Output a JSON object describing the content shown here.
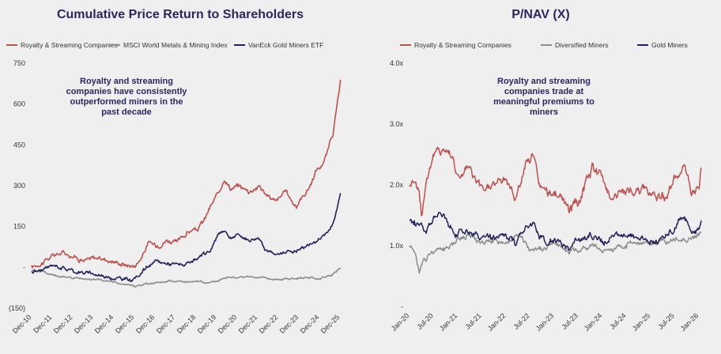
{
  "colors": {
    "royalty": "#c0504d",
    "msci": "#8c8c8c",
    "gold": "#23215c",
    "title": "#2a2760",
    "bg": "#efefef"
  },
  "chart_data": [
    {
      "type": "line",
      "title": "Cumulative Price Return to Shareholders",
      "ylim": [
        -150,
        750
      ],
      "yticks": [
        "(150)",
        "-",
        "150",
        "300",
        "450",
        "600",
        "750"
      ],
      "ytick_values": [
        -150,
        0,
        150,
        300,
        450,
        600,
        750
      ],
      "xlim": [
        2010.92,
        2026.0
      ],
      "xticks": [
        "Dec-10",
        "Dec-11",
        "Dec-12",
        "Dec-13",
        "Dec-14",
        "Dec-15",
        "Dec-16",
        "Dec-17",
        "Dec-18",
        "Dec-19",
        "Dec-20",
        "Dec-21",
        "Dec-22",
        "Dec-23",
        "Dec-24",
        "Dec-25"
      ],
      "xtick_values": [
        2010.92,
        2011.92,
        2012.92,
        2013.92,
        2014.92,
        2015.92,
        2016.92,
        2017.92,
        2018.92,
        2019.92,
        2020.92,
        2021.92,
        2022.92,
        2023.92,
        2024.92,
        2025.92
      ],
      "legend_position": "top",
      "annotation": [
        "Royalty and streaming",
        "companies have consistently",
        "outperformed miners in the",
        "past decade"
      ],
      "series": [
        {
          "name": "Royalty & Streaming Companies",
          "color": "#c0504d",
          "noise": 8,
          "x": [
            2010.92,
            2011.5,
            2012.0,
            2012.5,
            2013.0,
            2013.5,
            2014.0,
            2014.5,
            2015.0,
            2015.5,
            2015.92,
            2016.3,
            2016.6,
            2017.0,
            2017.5,
            2018.0,
            2018.5,
            2019.0,
            2019.3,
            2019.6,
            2020.0,
            2020.3,
            2020.6,
            2021.0,
            2021.5,
            2022.0,
            2022.3,
            2022.8,
            2023.3,
            2023.8,
            2024.0,
            2024.3,
            2024.6,
            2024.8,
            2025.0,
            2025.3,
            2025.6,
            2025.8,
            2025.95
          ],
          "y": [
            0,
            20,
            45,
            55,
            40,
            25,
            35,
            30,
            20,
            10,
            5,
            40,
            90,
            80,
            100,
            90,
            130,
            140,
            170,
            220,
            270,
            330,
            290,
            300,
            280,
            300,
            270,
            240,
            280,
            220,
            250,
            280,
            320,
            360,
            370,
            420,
            500,
            600,
            680
          ]
        },
        {
          "name": "MSCI World Metals & Mining Index",
          "color": "#8c8c8c",
          "noise": 3,
          "x": [
            2010.92,
            2011.5,
            2012.0,
            2013.0,
            2014.0,
            2015.0,
            2015.92,
            2016.5,
            2017.0,
            2018.0,
            2019.0,
            2020.0,
            2020.5,
            2021.0,
            2022.0,
            2023.0,
            2024.0,
            2025.0,
            2025.5,
            2025.95
          ],
          "y": [
            -10,
            -15,
            -30,
            -40,
            -45,
            -55,
            -70,
            -62,
            -55,
            -50,
            -55,
            -50,
            -35,
            -35,
            -38,
            -45,
            -38,
            -40,
            -30,
            0
          ]
        },
        {
          "name": "VanEck Gold Miners ETF",
          "color": "#23215c",
          "noise": 6,
          "x": [
            2010.92,
            2011.5,
            2012.0,
            2013.0,
            2014.0,
            2015.0,
            2015.92,
            2016.5,
            2017.0,
            2018.0,
            2018.5,
            2019.0,
            2019.6,
            2020.0,
            2020.3,
            2020.6,
            2021.0,
            2021.5,
            2022.0,
            2022.3,
            2022.8,
            2023.3,
            2023.8,
            2024.3,
            2024.8,
            2025.0,
            2025.3,
            2025.6,
            2025.8,
            2025.95
          ],
          "y": [
            -15,
            -10,
            10,
            -15,
            -25,
            -40,
            -45,
            0,
            20,
            10,
            10,
            30,
            60,
            120,
            140,
            105,
            120,
            100,
            110,
            70,
            40,
            60,
            60,
            80,
            95,
            110,
            130,
            160,
            220,
            280
          ]
        }
      ]
    },
    {
      "type": "line",
      "title": "P/NAV (X)",
      "ylim": [
        0,
        4.0
      ],
      "yticks": [
        "-",
        "1.0x",
        "2.0x",
        "3.0x",
        "4.0x"
      ],
      "ytick_values": [
        0,
        1,
        2,
        3,
        4
      ],
      "xlim": [
        2020.0,
        2026.1
      ],
      "xticks": [
        "Jan-20",
        "Jul-20",
        "Jan-21",
        "Jul-21",
        "Jan-22",
        "Jul-22",
        "Jan-23",
        "Jul-23",
        "Jan-24",
        "Jul-24",
        "Jan-25",
        "Jul-25",
        "Jan-26"
      ],
      "xtick_values": [
        2020.0,
        2020.5,
        2021.0,
        2021.5,
        2022.0,
        2022.5,
        2023.0,
        2023.5,
        2024.0,
        2024.5,
        2025.0,
        2025.5,
        2026.0
      ],
      "legend_position": "top",
      "annotation": [
        "Royalty and streaming",
        "companies trade at",
        "meaningful premiums to",
        "miners"
      ],
      "series": [
        {
          "name": "Royalty & Streaming Companies",
          "color": "#c0504d",
          "noise": 0.07,
          "x": [
            2020.0,
            2020.1,
            2020.2,
            2020.25,
            2020.35,
            2020.5,
            2020.7,
            2020.9,
            2021.0,
            2021.2,
            2021.5,
            2021.7,
            2022.0,
            2022.2,
            2022.4,
            2022.55,
            2022.7,
            2022.9,
            2023.0,
            2023.3,
            2023.5,
            2023.8,
            2024.0,
            2024.2,
            2024.5,
            2024.8,
            2025.0,
            2025.3,
            2025.5,
            2025.7,
            2025.85,
            2026.0,
            2026.05
          ],
          "y": [
            2.0,
            2.1,
            1.9,
            1.5,
            2.1,
            2.5,
            2.6,
            2.5,
            2.1,
            2.3,
            1.9,
            2.0,
            2.1,
            1.8,
            2.3,
            2.5,
            2.0,
            1.8,
            1.9,
            1.6,
            1.7,
            2.3,
            2.1,
            1.8,
            1.9,
            1.9,
            1.9,
            1.8,
            2.1,
            2.3,
            1.8,
            2.0,
            2.3
          ]
        },
        {
          "name": "Diversified Miners",
          "color": "#8c8c8c",
          "noise": 0.04,
          "x": [
            2020.0,
            2020.1,
            2020.2,
            2020.3,
            2020.5,
            2020.8,
            2021.0,
            2021.2,
            2021.5,
            2022.0,
            2022.3,
            2022.5,
            2022.8,
            2023.0,
            2023.3,
            2023.8,
            2024.0,
            2024.5,
            2025.0,
            2025.5,
            2026.0,
            2026.05
          ],
          "y": [
            1.0,
            0.95,
            0.55,
            0.8,
            0.9,
            1.0,
            1.1,
            1.2,
            1.05,
            1.1,
            1.15,
            0.9,
            0.95,
            1.1,
            0.9,
            1.0,
            0.9,
            1.0,
            1.05,
            1.1,
            1.15,
            1.25
          ]
        },
        {
          "name": "Gold Miners",
          "color": "#23215c",
          "noise": 0.05,
          "x": [
            2020.0,
            2020.2,
            2020.35,
            2020.5,
            2020.65,
            2020.8,
            2021.0,
            2021.2,
            2021.5,
            2022.0,
            2022.2,
            2022.4,
            2022.55,
            2022.7,
            2022.9,
            2023.0,
            2023.3,
            2023.5,
            2023.8,
            2024.0,
            2024.2,
            2024.5,
            2025.0,
            2025.3,
            2025.5,
            2025.7,
            2025.85,
            2026.0,
            2026.05
          ],
          "y": [
            1.4,
            1.35,
            1.2,
            1.5,
            1.6,
            1.35,
            1.2,
            1.25,
            1.1,
            1.15,
            1.05,
            1.3,
            1.4,
            1.2,
            1.0,
            1.1,
            0.95,
            1.1,
            1.2,
            1.05,
            1.15,
            1.2,
            1.1,
            1.1,
            1.3,
            1.5,
            1.2,
            1.3,
            1.45
          ]
        }
      ]
    }
  ]
}
